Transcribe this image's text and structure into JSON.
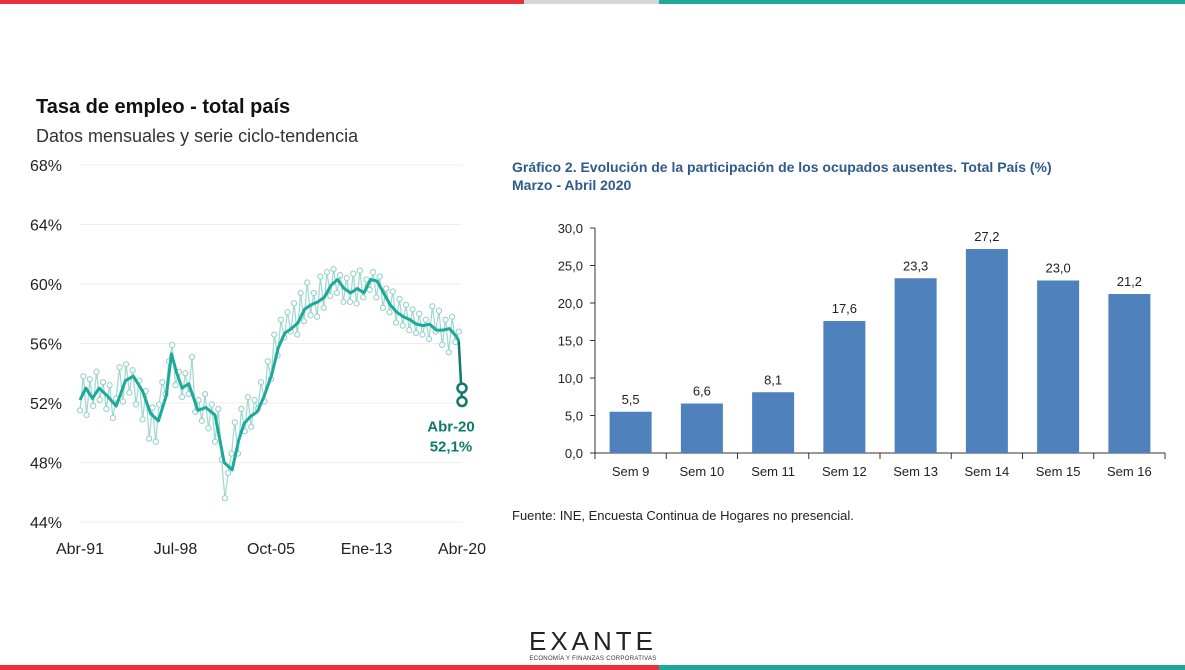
{
  "colors": {
    "red": "#e8313a",
    "grey": "#d5d5d5",
    "teal": "#1ca99a",
    "dark_teal": "#0e7a6e",
    "bar_blue": "#4f81bd",
    "title_blue": "#2f5a8c"
  },
  "left_chart": {
    "title": "Tasa de empleo - total país",
    "subtitle": "Datos mensuales y serie ciclo-tendencia",
    "annotation": {
      "label": "Abr-20",
      "value": "52,1%"
    }
  },
  "right_chart": {
    "title_line1": "Gráfico 2. Evolución de la participación de los ocupados ausentes. Total País (%)",
    "title_line2": "Marzo - Abril 2020",
    "source": "Fuente: INE, Encuesta Continua de Hogares no presencial."
  },
  "logo": {
    "text": "EXANTE",
    "subtext": "ECONOMÍA Y FINANZAS CORPORATIVAS"
  },
  "chart_data": [
    {
      "type": "line",
      "title": "Tasa de empleo - total país",
      "subtitle": "Datos mensuales y serie ciclo-tendencia",
      "ylim": [
        44,
        68
      ],
      "yticks": [
        "44%",
        "48%",
        "52%",
        "56%",
        "60%",
        "64%",
        "68%"
      ],
      "yticks_values": [
        44,
        48,
        52,
        56,
        60,
        64,
        68
      ],
      "xlim": [
        1991.25,
        2020.25
      ],
      "xticks": [
        "Abr-91",
        "Jul-98",
        "Oct-05",
        "Ene-13",
        "Abr-20"
      ],
      "xticks_values": [
        1991.25,
        1998.5,
        2005.75,
        2013.0,
        2020.25
      ],
      "series": [
        {
          "name": "",
          "style": "trend",
          "x": [
            1991.25,
            1991.7,
            1992.2,
            1992.7,
            1993.3,
            1994.0,
            1994.7,
            1995.3,
            1996.0,
            1996.6,
            1997.2,
            1997.8,
            1998.2,
            1998.6,
            1999.0,
            1999.5,
            2000.2,
            2000.8,
            2001.5,
            2002.2,
            2002.8,
            2003.3,
            2003.7,
            2004.2,
            2004.7,
            2005.2,
            2005.8,
            2006.3,
            2006.8,
            2007.3,
            2007.8,
            2008.3,
            2008.8,
            2009.3,
            2009.8,
            2010.3,
            2010.8,
            2011.3,
            2011.8,
            2012.3,
            2012.8,
            2013.3,
            2013.8,
            2014.3,
            2014.8,
            2015.3,
            2015.8,
            2016.3,
            2016.8,
            2017.3,
            2017.8,
            2018.3,
            2018.8,
            2019.3,
            2019.8,
            2020.0
          ],
          "values": [
            52.2,
            53.0,
            52.3,
            53.0,
            52.5,
            51.8,
            53.5,
            53.8,
            52.8,
            51.3,
            50.8,
            52.5,
            55.3,
            54.0,
            53.0,
            53.3,
            51.5,
            51.7,
            51.2,
            48.0,
            47.5,
            49.5,
            50.6,
            51.1,
            51.4,
            52.4,
            53.9,
            55.7,
            56.7,
            57.0,
            57.4,
            58.3,
            58.6,
            58.8,
            59.1,
            59.9,
            60.3,
            59.7,
            59.4,
            59.7,
            59.4,
            60.3,
            60.2,
            59.4,
            58.6,
            58.1,
            57.8,
            57.6,
            57.3,
            57.2,
            57.3,
            56.9,
            56.9,
            57.0,
            56.5,
            56.2
          ]
        },
        {
          "name": "",
          "style": "monthly",
          "x": [
            1991.25,
            1991.5,
            1991.75,
            1992.0,
            1992.25,
            1992.5,
            1992.75,
            1993.0,
            1993.25,
            1993.5,
            1993.75,
            1994.0,
            1994.25,
            1994.5,
            1994.75,
            1995.0,
            1995.25,
            1995.5,
            1995.75,
            1996.0,
            1996.25,
            1996.5,
            1996.75,
            1997.0,
            1997.25,
            1997.5,
            1997.75,
            1998.0,
            1998.25,
            1998.5,
            1998.75,
            1999.0,
            1999.25,
            1999.5,
            1999.75,
            2000.0,
            2000.25,
            2000.5,
            2000.75,
            2001.0,
            2001.25,
            2001.5,
            2001.75,
            2002.0,
            2002.25,
            2002.5,
            2002.75,
            2003.0,
            2003.25,
            2003.5,
            2003.75,
            2004.0,
            2004.25,
            2004.5,
            2004.75,
            2005.0,
            2005.25,
            2005.5,
            2005.75,
            2006.0,
            2006.25,
            2006.5,
            2006.75,
            2007.0,
            2007.25,
            2007.5,
            2007.75,
            2008.0,
            2008.25,
            2008.5,
            2008.75,
            2009.0,
            2009.25,
            2009.5,
            2009.75,
            2010.0,
            2010.25,
            2010.5,
            2010.75,
            2011.0,
            2011.25,
            2011.5,
            2011.75,
            2012.0,
            2012.25,
            2012.5,
            2012.75,
            2013.0,
            2013.25,
            2013.5,
            2013.75,
            2014.0,
            2014.25,
            2014.5,
            2014.75,
            2015.0,
            2015.25,
            2015.5,
            2015.75,
            2016.0,
            2016.25,
            2016.5,
            2016.75,
            2017.0,
            2017.25,
            2017.5,
            2017.75,
            2018.0,
            2018.25,
            2018.5,
            2018.75,
            2019.0,
            2019.25,
            2019.5,
            2019.75,
            2020.0
          ],
          "values": [
            51.5,
            53.8,
            51.2,
            53.6,
            51.8,
            54.1,
            52.2,
            53.4,
            51.6,
            53.2,
            51.0,
            52.3,
            54.4,
            52.1,
            54.6,
            52.7,
            54.2,
            51.9,
            53.5,
            50.9,
            52.8,
            49.6,
            51.7,
            49.4,
            51.9,
            53.4,
            52.6,
            54.8,
            55.9,
            53.2,
            54.1,
            52.4,
            54.0,
            52.6,
            55.1,
            51.4,
            52.2,
            50.8,
            52.6,
            50.3,
            51.9,
            49.4,
            51.6,
            48.2,
            45.6,
            47.3,
            48.6,
            50.7,
            48.6,
            51.6,
            50.1,
            52.4,
            50.4,
            52.2,
            51.6,
            53.4,
            52.1,
            54.8,
            53.6,
            56.6,
            55.2,
            57.6,
            56.4,
            58.1,
            56.8,
            58.7,
            56.6,
            59.4,
            57.5,
            60.1,
            57.9,
            59.4,
            57.8,
            60.5,
            58.4,
            60.8,
            59.2,
            61.0,
            59.4,
            60.6,
            58.8,
            60.4,
            58.8,
            60.7,
            58.7,
            60.9,
            59.1,
            60.3,
            59.6,
            60.8,
            59.1,
            60.5,
            58.4,
            59.7,
            58.1,
            59.5,
            57.4,
            59.0,
            57.2,
            58.6,
            56.9,
            58.3,
            56.7,
            58.0,
            56.6,
            57.6,
            56.3,
            58.5,
            56.8,
            58.2,
            55.9,
            57.6,
            55.4,
            57.8,
            56.1,
            56.8
          ]
        },
        {
          "name": "",
          "style": "endpoints",
          "x": [
            2020.25,
            2020.25
          ],
          "values": [
            53.0,
            52.1
          ]
        }
      ]
    },
    {
      "type": "bar",
      "title": "Gráfico 2. Evolución de la participación de los ocupados ausentes. Total País (%)",
      "subtitle": "Marzo - Abril 2020",
      "categories": [
        "Sem 9",
        "Sem 10",
        "Sem 11",
        "Sem 12",
        "Sem 13",
        "Sem 14",
        "Sem 15",
        "Sem 16"
      ],
      "values": [
        5.5,
        6.6,
        8.1,
        17.6,
        23.3,
        27.2,
        23.0,
        21.2
      ],
      "data_labels": [
        "5,5",
        "6,6",
        "8,1",
        "17,6",
        "23,3",
        "27,2",
        "23,0",
        "21,2"
      ],
      "ylim": [
        0,
        30
      ],
      "yticks": [
        "0,0",
        "5,0",
        "10,0",
        "15,0",
        "20,0",
        "25,0",
        "30,0"
      ],
      "yticks_values": [
        0,
        5,
        10,
        15,
        20,
        25,
        30
      ],
      "source": "Fuente: INE, Encuesta Continua de Hogares no presencial."
    }
  ]
}
